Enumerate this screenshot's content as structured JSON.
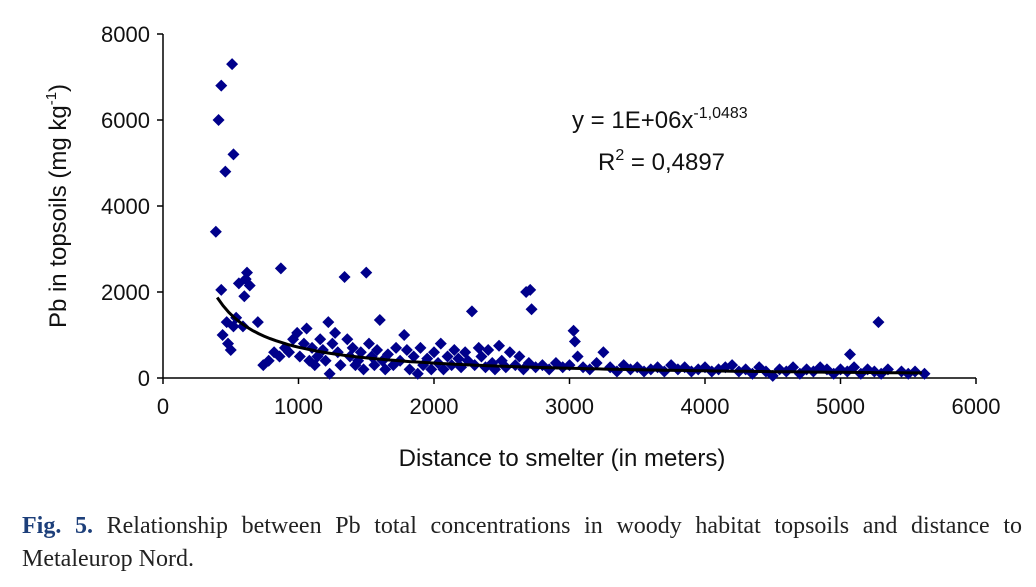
{
  "chart_data": {
    "type": "scatter",
    "title": "",
    "xlabel": "Distance to smelter (in meters)",
    "ylabel_main": "Pb in topsoils (mg kg",
    "ylabel_sup": "-1",
    "ylabel_end": ")",
    "xlim": [
      0,
      6000
    ],
    "ylim": [
      0,
      8000
    ],
    "x_ticks": [
      0,
      1000,
      2000,
      3000,
      4000,
      5000,
      6000
    ],
    "y_ticks": [
      0,
      2000,
      4000,
      6000,
      8000
    ],
    "grid": false,
    "marker": "diamond",
    "marker_color": "#00008b",
    "trendline": {
      "type": "power",
      "a": 1000000,
      "b": -1.0483,
      "x_range": [
        400,
        5600
      ],
      "color": "#000000"
    },
    "equation": {
      "y_prefix": "y = 1E+06x",
      "exponent": "-1,0483",
      "r_label": "R",
      "r_sup": "2",
      "r_value": " = 0,4897"
    },
    "series": [
      {
        "name": "Pb in topsoils",
        "points": [
          [
            390,
            3400
          ],
          [
            410,
            6000
          ],
          [
            430,
            6800
          ],
          [
            460,
            4800
          ],
          [
            510,
            7300
          ],
          [
            520,
            5200
          ],
          [
            430,
            2050
          ],
          [
            440,
            1000
          ],
          [
            470,
            1300
          ],
          [
            480,
            800
          ],
          [
            500,
            650
          ],
          [
            520,
            1200
          ],
          [
            540,
            1400
          ],
          [
            560,
            2200
          ],
          [
            590,
            1200
          ],
          [
            600,
            1900
          ],
          [
            610,
            2300
          ],
          [
            620,
            2450
          ],
          [
            640,
            2150
          ],
          [
            700,
            1300
          ],
          [
            740,
            300
          ],
          [
            780,
            400
          ],
          [
            820,
            600
          ],
          [
            860,
            500
          ],
          [
            870,
            2550
          ],
          [
            900,
            700
          ],
          [
            930,
            600
          ],
          [
            960,
            900
          ],
          [
            990,
            1050
          ],
          [
            1010,
            500
          ],
          [
            1040,
            800
          ],
          [
            1060,
            1150
          ],
          [
            1080,
            400
          ],
          [
            1100,
            700
          ],
          [
            1120,
            300
          ],
          [
            1140,
            500
          ],
          [
            1160,
            900
          ],
          [
            1180,
            650
          ],
          [
            1200,
            400
          ],
          [
            1220,
            1300
          ],
          [
            1230,
            100
          ],
          [
            1250,
            800
          ],
          [
            1270,
            1050
          ],
          [
            1290,
            600
          ],
          [
            1310,
            300
          ],
          [
            1340,
            2350
          ],
          [
            1360,
            900
          ],
          [
            1380,
            500
          ],
          [
            1400,
            700
          ],
          [
            1420,
            300
          ],
          [
            1440,
            400
          ],
          [
            1460,
            600
          ],
          [
            1480,
            200
          ],
          [
            1500,
            2450
          ],
          [
            1520,
            800
          ],
          [
            1540,
            500
          ],
          [
            1560,
            300
          ],
          [
            1580,
            650
          ],
          [
            1600,
            1350
          ],
          [
            1620,
            400
          ],
          [
            1640,
            200
          ],
          [
            1660,
            550
          ],
          [
            1700,
            300
          ],
          [
            1720,
            700
          ],
          [
            1750,
            400
          ],
          [
            1780,
            1000
          ],
          [
            1800,
            650
          ],
          [
            1820,
            200
          ],
          [
            1850,
            500
          ],
          [
            1880,
            100
          ],
          [
            1900,
            700
          ],
          [
            1920,
            300
          ],
          [
            1950,
            450
          ],
          [
            1980,
            200
          ],
          [
            2000,
            600
          ],
          [
            2030,
            350
          ],
          [
            2050,
            800
          ],
          [
            2070,
            200
          ],
          [
            2100,
            500
          ],
          [
            2130,
            300
          ],
          [
            2150,
            650
          ],
          [
            2180,
            450
          ],
          [
            2200,
            250
          ],
          [
            2230,
            600
          ],
          [
            2250,
            400
          ],
          [
            2280,
            1550
          ],
          [
            2300,
            300
          ],
          [
            2330,
            700
          ],
          [
            2350,
            500
          ],
          [
            2380,
            250
          ],
          [
            2400,
            650
          ],
          [
            2430,
            350
          ],
          [
            2450,
            200
          ],
          [
            2480,
            750
          ],
          [
            2500,
            400
          ],
          [
            2530,
            250
          ],
          [
            2560,
            600
          ],
          [
            2600,
            300
          ],
          [
            2630,
            500
          ],
          [
            2660,
            200
          ],
          [
            2680,
            2000
          ],
          [
            2700,
            350
          ],
          [
            2710,
            2050
          ],
          [
            2720,
            1600
          ],
          [
            2750,
            250
          ],
          [
            2800,
            300
          ],
          [
            2850,
            200
          ],
          [
            2900,
            350
          ],
          [
            2950,
            250
          ],
          [
            3000,
            300
          ],
          [
            3030,
            1100
          ],
          [
            3040,
            850
          ],
          [
            3060,
            500
          ],
          [
            3100,
            250
          ],
          [
            3150,
            200
          ],
          [
            3200,
            350
          ],
          [
            3250,
            600
          ],
          [
            3300,
            250
          ],
          [
            3350,
            150
          ],
          [
            3400,
            300
          ],
          [
            3450,
            200
          ],
          [
            3500,
            250
          ],
          [
            3550,
            150
          ],
          [
            3600,
            200
          ],
          [
            3650,
            250
          ],
          [
            3700,
            150
          ],
          [
            3750,
            300
          ],
          [
            3800,
            200
          ],
          [
            3850,
            250
          ],
          [
            3900,
            150
          ],
          [
            3950,
            200
          ],
          [
            4000,
            250
          ],
          [
            4050,
            150
          ],
          [
            4100,
            200
          ],
          [
            4150,
            250
          ],
          [
            4200,
            300
          ],
          [
            4250,
            150
          ],
          [
            4300,
            200
          ],
          [
            4350,
            100
          ],
          [
            4400,
            250
          ],
          [
            4450,
            150
          ],
          [
            4500,
            50
          ],
          [
            4550,
            200
          ],
          [
            4600,
            150
          ],
          [
            4650,
            250
          ],
          [
            4700,
            100
          ],
          [
            4750,
            200
          ],
          [
            4800,
            150
          ],
          [
            4850,
            250
          ],
          [
            4900,
            200
          ],
          [
            4950,
            100
          ],
          [
            5000,
            200
          ],
          [
            5050,
            150
          ],
          [
            5070,
            550
          ],
          [
            5100,
            250
          ],
          [
            5150,
            100
          ],
          [
            5200,
            200
          ],
          [
            5250,
            150
          ],
          [
            5280,
            1300
          ],
          [
            5300,
            100
          ],
          [
            5350,
            200
          ],
          [
            5450,
            150
          ],
          [
            5500,
            100
          ],
          [
            5550,
            150
          ],
          [
            5620,
            100
          ]
        ]
      }
    ]
  },
  "caption": {
    "label": "Fig. 5.",
    "text": " Relationship between Pb total concentrations in woody habitat topsoils and distance to Metaleurop Nord."
  }
}
